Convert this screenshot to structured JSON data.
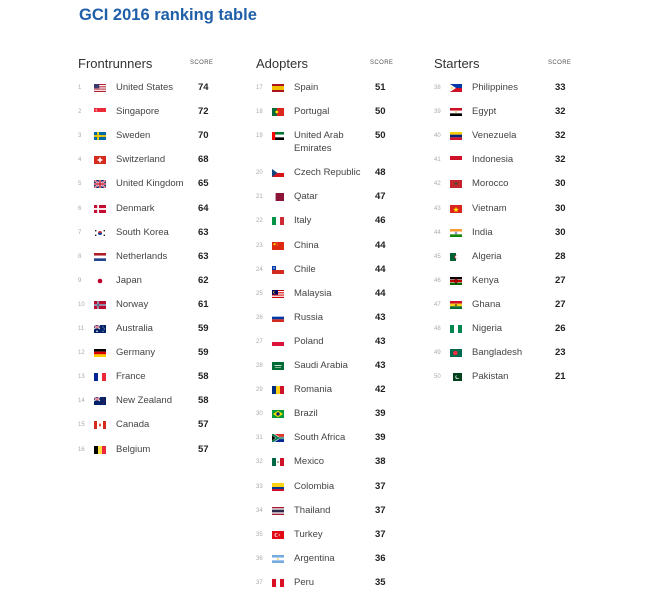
{
  "title": "GCI 2016 ranking table",
  "columns": [
    {
      "name": "Frontrunners",
      "score_label": "SCORE",
      "rows": [
        {
          "rank": "1",
          "country": "United States",
          "score": "74",
          "flag": "us-flag"
        },
        {
          "rank": "2",
          "country": "Singapore",
          "score": "72",
          "flag": "singapore-flag"
        },
        {
          "rank": "3",
          "country": "Sweden",
          "score": "70",
          "flag": "sweden-flag"
        },
        {
          "rank": "4",
          "country": "Switzerland",
          "score": "68",
          "flag": "switzerland-flag"
        },
        {
          "rank": "5",
          "country": "United Kingdom",
          "score": "65",
          "flag": "uk-flag"
        },
        {
          "rank": "6",
          "country": "Denmark",
          "score": "64",
          "flag": "denmark-flag"
        },
        {
          "rank": "7",
          "country": "South Korea",
          "score": "63",
          "flag": "south-korea-flag"
        },
        {
          "rank": "8",
          "country": "Netherlands",
          "score": "63",
          "flag": "netherlands-flag"
        },
        {
          "rank": "9",
          "country": "Japan",
          "score": "62",
          "flag": "japan-flag"
        },
        {
          "rank": "10",
          "country": "Norway",
          "score": "61",
          "flag": "norway-flag"
        },
        {
          "rank": "11",
          "country": "Australia",
          "score": "59",
          "flag": "australia-flag"
        },
        {
          "rank": "12",
          "country": "Germany",
          "score": "59",
          "flag": "germany-flag"
        },
        {
          "rank": "13",
          "country": "France",
          "score": "58",
          "flag": "france-flag"
        },
        {
          "rank": "14",
          "country": "New Zealand",
          "score": "58",
          "flag": "new-zealand-flag"
        },
        {
          "rank": "15",
          "country": "Canada",
          "score": "57",
          "flag": "canada-flag"
        },
        {
          "rank": "16",
          "country": "Belgium",
          "score": "57",
          "flag": "belgium-flag"
        }
      ]
    },
    {
      "name": "Adopters",
      "score_label": "SCORE",
      "rows": [
        {
          "rank": "17",
          "country": "Spain",
          "score": "51",
          "flag": "spain-flag"
        },
        {
          "rank": "18",
          "country": "Portugal",
          "score": "50",
          "flag": "portugal-flag"
        },
        {
          "rank": "19",
          "country": "United Arab Emirates",
          "score": "50",
          "flag": "uae-flag"
        },
        {
          "rank": "20",
          "country": "Czech Republic",
          "score": "48",
          "flag": "czech-flag"
        },
        {
          "rank": "21",
          "country": "Qatar",
          "score": "47",
          "flag": "qatar-flag"
        },
        {
          "rank": "22",
          "country": "Italy",
          "score": "46",
          "flag": "italy-flag"
        },
        {
          "rank": "23",
          "country": "China",
          "score": "44",
          "flag": "china-flag"
        },
        {
          "rank": "24",
          "country": "Chile",
          "score": "44",
          "flag": "chile-flag"
        },
        {
          "rank": "25",
          "country": "Malaysia",
          "score": "44",
          "flag": "malaysia-flag"
        },
        {
          "rank": "26",
          "country": "Russia",
          "score": "43",
          "flag": "russia-flag"
        },
        {
          "rank": "27",
          "country": "Poland",
          "score": "43",
          "flag": "poland-flag"
        },
        {
          "rank": "28",
          "country": "Saudi Arabia",
          "score": "43",
          "flag": "saudi-arabia-flag"
        },
        {
          "rank": "29",
          "country": "Romania",
          "score": "42",
          "flag": "romania-flag"
        },
        {
          "rank": "30",
          "country": "Brazil",
          "score": "39",
          "flag": "brazil-flag"
        },
        {
          "rank": "31",
          "country": "South Africa",
          "score": "39",
          "flag": "south-africa-flag"
        },
        {
          "rank": "32",
          "country": "Mexico",
          "score": "38",
          "flag": "mexico-flag"
        },
        {
          "rank": "33",
          "country": "Colombia",
          "score": "37",
          "flag": "colombia-flag"
        },
        {
          "rank": "34",
          "country": "Thailand",
          "score": "37",
          "flag": "thailand-flag"
        },
        {
          "rank": "35",
          "country": "Turkey",
          "score": "37",
          "flag": "turkey-flag"
        },
        {
          "rank": "36",
          "country": "Argentina",
          "score": "36",
          "flag": "argentina-flag"
        },
        {
          "rank": "37",
          "country": "Peru",
          "score": "35",
          "flag": "peru-flag"
        }
      ]
    },
    {
      "name": "Starters",
      "score_label": "SCORE",
      "rows": [
        {
          "rank": "38",
          "country": "Philippines",
          "score": "33",
          "flag": "philippines-flag"
        },
        {
          "rank": "39",
          "country": "Egypt",
          "score": "32",
          "flag": "egypt-flag"
        },
        {
          "rank": "40",
          "country": "Venezuela",
          "score": "32",
          "flag": "venezuela-flag"
        },
        {
          "rank": "41",
          "country": "Indonesia",
          "score": "32",
          "flag": "indonesia-flag"
        },
        {
          "rank": "42",
          "country": "Morocco",
          "score": "30",
          "flag": "morocco-flag"
        },
        {
          "rank": "43",
          "country": "Vietnam",
          "score": "30",
          "flag": "vietnam-flag"
        },
        {
          "rank": "44",
          "country": "India",
          "score": "30",
          "flag": "india-flag"
        },
        {
          "rank": "45",
          "country": "Algeria",
          "score": "28",
          "flag": "algeria-flag"
        },
        {
          "rank": "46",
          "country": "Kenya",
          "score": "27",
          "flag": "kenya-flag"
        },
        {
          "rank": "47",
          "country": "Ghana",
          "score": "27",
          "flag": "ghana-flag"
        },
        {
          "rank": "48",
          "country": "Nigeria",
          "score": "26",
          "flag": "nigeria-flag"
        },
        {
          "rank": "49",
          "country": "Bangladesh",
          "score": "23",
          "flag": "bangladesh-flag"
        },
        {
          "rank": "50",
          "country": "Pakistan",
          "score": "21",
          "flag": "pakistan-flag"
        }
      ]
    }
  ]
}
